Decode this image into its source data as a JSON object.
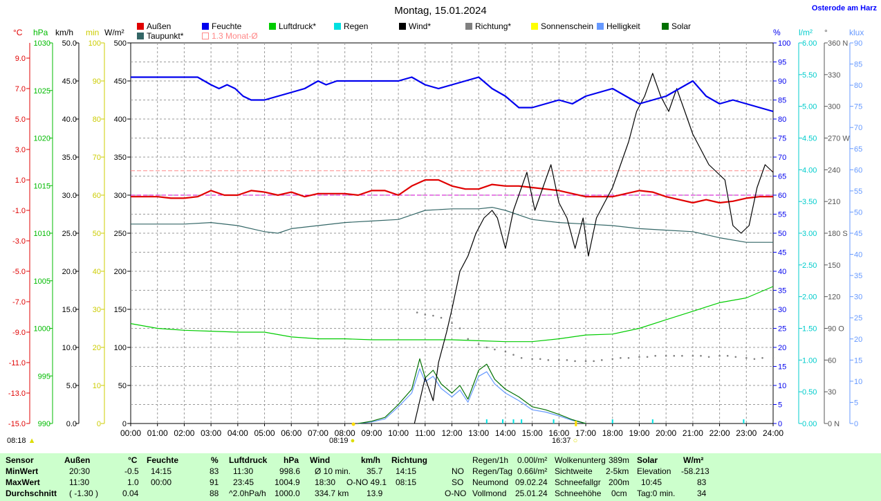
{
  "title": "Montag, 15.01.2024",
  "location": "Osterode am Harz",
  "legend": [
    {
      "label": "Außen",
      "color": "#e00000",
      "outline": false
    },
    {
      "label": "Feuchte",
      "color": "#0000ee",
      "outline": false
    },
    {
      "label": "Luftdruck*",
      "color": "#00cc00",
      "outline": false
    },
    {
      "label": "Regen",
      "color": "#00e0e0",
      "outline": false
    },
    {
      "label": "Wind*",
      "color": "#000000",
      "outline": false
    },
    {
      "label": "Richtung*",
      "color": "#808080",
      "outline": false
    },
    {
      "label": "Sonnenschein",
      "color": "#ffff00",
      "outline": false
    },
    {
      "label": "Helligkeit",
      "color": "#6699ff",
      "outline": false
    },
    {
      "label": "Solar",
      "color": "#007000",
      "outline": false
    },
    {
      "label": "Taupunkt*",
      "color": "#336666",
      "outline": false
    },
    {
      "label": "1.3 Monat-Ø",
      "color": "#ff8888",
      "outline": true
    }
  ],
  "units": {
    "temp": "°C",
    "press": "hPa",
    "wind": "km/h",
    "sun": "min",
    "solar": "W/m²",
    "hum": "%",
    "rain": "l/m²",
    "dir": "°",
    "lux": "klux"
  },
  "axes": {
    "temp": {
      "color": "#e00000",
      "ticks": [
        "9.0",
        "7.0",
        "5.0",
        "3.0",
        "1.0",
        "-1.0",
        "-3.0",
        "-5.0",
        "-7.0",
        "-9.0",
        "-11.0",
        "-13.0",
        "-15.0"
      ]
    },
    "press": {
      "color": "#00bb00",
      "ticks": [
        "1030",
        "1025",
        "1020",
        "1015",
        "1010",
        "1005",
        "1000",
        "995",
        "990"
      ]
    },
    "wind": {
      "color": "#000000",
      "ticks": [
        "50.0",
        "45.0",
        "40.0",
        "35.0",
        "30.0",
        "25.0",
        "20.0",
        "15.0",
        "10.0",
        "5.0",
        "0.0"
      ]
    },
    "sun": {
      "color": "#cccc00",
      "ticks": [
        "100",
        "90",
        "80",
        "70",
        "60",
        "50",
        "40",
        "30",
        "20",
        "10",
        "0"
      ]
    },
    "solar": {
      "color": "#000000",
      "ticks": [
        "500",
        "450",
        "400",
        "350",
        "300",
        "250",
        "200",
        "150",
        "100",
        "50",
        "0"
      ]
    },
    "hum": {
      "color": "#0000ee",
      "ticks": [
        "100",
        "95",
        "90",
        "85",
        "80",
        "75",
        "70",
        "65",
        "60",
        "55",
        "50",
        "45",
        "40",
        "35",
        "30",
        "25",
        "20",
        "15",
        "10",
        "5",
        "0"
      ]
    },
    "rain": {
      "color": "#00cccc",
      "ticks": [
        "6.00",
        "5.50",
        "5.00",
        "4.50",
        "4.00",
        "3.50",
        "3.00",
        "2.50",
        "2.00",
        "1.50",
        "1.00",
        "0.50",
        "0.00"
      ]
    },
    "dir": {
      "color": "#555555",
      "ticks": [
        "360 N",
        "330",
        "300",
        "270 W",
        "240",
        "210",
        "180 S",
        "150",
        "120",
        "90 O",
        "60",
        "30",
        "0 N"
      ]
    },
    "lux": {
      "color": "#6699ff",
      "ticks": [
        "90",
        "85",
        "80",
        "75",
        "70",
        "65",
        "60",
        "55",
        "50",
        "45",
        "40",
        "35",
        "30",
        "25",
        "20",
        "15",
        "10",
        "5",
        "0"
      ]
    }
  },
  "x_ticks": [
    "00:00",
    "01:00",
    "02:00",
    "03:00",
    "04:00",
    "05:00",
    "06:00",
    "07:00",
    "08:00",
    "09:00",
    "10:00",
    "11:00",
    "12:00",
    "13:00",
    "14:00",
    "15:00",
    "16:00",
    "17:00",
    "18:00",
    "19:00",
    "20:00",
    "21:00",
    "22:00",
    "23:00",
    "24:00"
  ],
  "sun_marks": {
    "left": "08:18",
    "sunrise": "08:19",
    "sunset": "16:37"
  },
  "chart_data": {
    "type": "line",
    "x_unit": "hours",
    "xlim": [
      0,
      24
    ],
    "grid": true,
    "series": [
      {
        "name": "Feuchte",
        "axis": "hum",
        "color": "#0000ee",
        "x": [
          0,
          2.5,
          3,
          3.3,
          3.6,
          3.9,
          4.2,
          4.5,
          5,
          5.5,
          6,
          6.5,
          7,
          7.3,
          7.7,
          8,
          9,
          10,
          10.5,
          11,
          11.5,
          12,
          12.5,
          13,
          13.5,
          14,
          14.5,
          15,
          15.5,
          16,
          16.5,
          17,
          17.5,
          18,
          18.5,
          19,
          19.5,
          20,
          20.5,
          21,
          21.5,
          22,
          22.5,
          23,
          23.5,
          24
        ],
        "y": [
          91,
          91,
          89,
          88,
          89,
          88,
          86,
          85,
          85,
          86,
          87,
          88,
          90,
          89,
          90,
          90,
          90,
          90,
          91,
          89,
          88,
          89,
          90,
          91,
          88,
          86,
          83,
          83,
          84,
          85,
          84,
          86,
          87,
          88,
          86,
          84,
          85,
          86,
          88,
          90,
          86,
          84,
          85,
          84,
          83,
          82
        ]
      },
      {
        "name": "Außen",
        "axis": "temp",
        "color": "#e00000",
        "x": [
          0,
          1,
          1.5,
          2,
          2.5,
          3,
          3.5,
          4,
          4.5,
          5,
          5.5,
          6,
          6.5,
          7,
          7.5,
          8,
          8.5,
          9,
          9.5,
          10,
          10.5,
          11,
          11.5,
          12,
          12.5,
          13,
          13.5,
          14,
          14.5,
          15,
          15.5,
          16,
          16.5,
          17,
          17.5,
          18,
          18.5,
          19,
          19.5,
          20,
          20.5,
          21,
          21.5,
          22,
          22.5,
          23,
          23.5,
          24
        ],
        "y": [
          -0.1,
          -0.1,
          -0.2,
          -0.2,
          -0.1,
          0.3,
          0.0,
          0.0,
          0.3,
          0.2,
          0.0,
          0.2,
          -0.1,
          0.1,
          0.1,
          0.1,
          0.0,
          0.3,
          0.3,
          0.0,
          0.6,
          1.0,
          1.0,
          0.6,
          0.4,
          0.4,
          0.7,
          0.6,
          0.6,
          0.5,
          0.4,
          0.3,
          0.1,
          -0.1,
          -0.1,
          -0.1,
          0.1,
          0.3,
          0.2,
          -0.1,
          -0.3,
          -0.5,
          -0.3,
          -0.5,
          -0.4,
          -0.2,
          -0.1,
          -0.1
        ]
      },
      {
        "name": "Taupunkt*",
        "axis": "temp",
        "color": "#336666",
        "x": [
          0,
          2,
          3,
          4,
          5,
          5.5,
          6,
          7,
          8,
          9,
          10,
          10.5,
          11,
          12,
          13,
          13.5,
          14,
          15,
          16,
          17,
          18,
          19,
          20,
          21,
          22,
          23,
          24
        ],
        "y": [
          -1.9,
          -1.9,
          -1.8,
          -2.0,
          -2.4,
          -2.5,
          -2.2,
          -2.0,
          -1.8,
          -1.7,
          -1.6,
          -1.3,
          -1.0,
          -0.9,
          -0.9,
          -0.8,
          -1.0,
          -1.6,
          -1.8,
          -1.9,
          -2.0,
          -2.2,
          -2.3,
          -2.4,
          -2.8,
          -3.1,
          -3.1
        ]
      },
      {
        "name": "Luftdruck*",
        "axis": "press",
        "color": "#00cc00",
        "x": [
          0,
          1,
          2,
          3,
          4,
          5,
          6,
          7,
          8,
          9,
          10,
          11,
          12,
          13,
          14,
          15,
          16,
          17,
          18,
          19,
          20,
          21,
          22,
          23,
          24
        ],
        "y": [
          1000.5,
          1000.0,
          999.8,
          999.7,
          999.6,
          999.6,
          999.1,
          998.9,
          998.9,
          998.8,
          998.8,
          998.8,
          998.8,
          998.7,
          998.6,
          998.6,
          998.9,
          999.3,
          999.4,
          1000.0,
          1000.9,
          1001.8,
          1002.7,
          1003.2,
          1004.4
        ]
      },
      {
        "name": "Wind*",
        "axis": "wind",
        "color": "#000000",
        "x": [
          10.6,
          11,
          11.3,
          11.5,
          11.8,
          12,
          12.3,
          12.6,
          12.9,
          13.2,
          13.5,
          13.7,
          14,
          14.3,
          14.6,
          14.8,
          15.1,
          15.4,
          15.7,
          16,
          16.3,
          16.6,
          16.9,
          17.1,
          17.4,
          17.7,
          18,
          18.3,
          18.6,
          18.9,
          19.2,
          19.5,
          19.8,
          20.1,
          20.4,
          20.7,
          21,
          21.3,
          21.6,
          21.9,
          22.2,
          22.5,
          22.8,
          23.1,
          23.4,
          23.7,
          24
        ],
        "y": [
          0,
          6,
          3,
          8,
          12,
          15,
          20,
          22,
          25,
          27,
          28,
          27,
          23,
          28,
          31,
          33,
          28,
          31,
          34,
          29,
          27,
          23,
          27,
          22,
          27,
          29,
          31,
          34,
          37,
          41,
          43,
          46,
          43,
          41,
          44,
          41,
          38,
          36,
          34,
          33,
          32,
          26,
          25,
          26,
          31,
          34,
          33
        ]
      },
      {
        "name": "Solar",
        "axis": "solar",
        "color": "#007000",
        "x": [
          8.5,
          9,
          9.5,
          10,
          10.5,
          10.8,
          11,
          11.3,
          11.6,
          12,
          12.3,
          12.6,
          13,
          13.3,
          13.6,
          14,
          14.5,
          15,
          15.5,
          16,
          16.5,
          17
        ],
        "y": [
          0,
          3,
          8,
          25,
          45,
          85,
          60,
          70,
          52,
          40,
          50,
          32,
          70,
          78,
          58,
          45,
          35,
          22,
          18,
          12,
          5,
          0
        ]
      },
      {
        "name": "Helligkeit",
        "axis": "solar",
        "color": "#6699ff",
        "x": [
          8.5,
          9,
          9.5,
          10,
          10.5,
          10.8,
          11,
          11.3,
          11.6,
          12,
          12.3,
          12.6,
          13,
          13.3,
          13.6,
          14,
          14.5,
          15,
          15.5,
          16,
          16.5,
          17
        ],
        "y": [
          0,
          2,
          6,
          22,
          40,
          72,
          55,
          62,
          46,
          35,
          44,
          28,
          62,
          68,
          52,
          40,
          30,
          18,
          15,
          10,
          4,
          0
        ]
      },
      {
        "name": "Richtung*",
        "axis": "dir",
        "color": "#808080",
        "dots": true,
        "x": [
          10.7,
          11,
          11.3,
          11.6,
          12,
          12.3,
          12.6,
          13,
          13.3,
          13.6,
          14,
          14.3,
          14.6,
          15,
          15.3,
          15.6,
          16,
          16.3,
          16.6,
          17,
          17.3,
          17.6,
          18,
          18.3,
          18.6,
          19,
          19.3,
          19.6,
          20,
          20.3,
          20.6,
          21,
          21.3,
          21.6,
          22,
          22.3,
          22.6,
          23,
          23.3,
          23.6,
          24
        ],
        "y": [
          105,
          103,
          102,
          100,
          95,
          90,
          80,
          75,
          72,
          70,
          68,
          65,
          62,
          61,
          61,
          60,
          60,
          60,
          59,
          59,
          59,
          60,
          61,
          62,
          62,
          63,
          63,
          64,
          64,
          64,
          64,
          64,
          64,
          63,
          64,
          64,
          63,
          62,
          61,
          62,
          62
        ]
      }
    ],
    "reference_lines": [
      {
        "name": "1.3 Monat-Ø",
        "axis": "temp",
        "value": 1.6,
        "color": "#ff8888",
        "dash": true
      },
      {
        "axis": "temp",
        "value": 0.0,
        "color": "#cc00cc",
        "dash": true
      }
    ],
    "rain_ticks": [
      13.3,
      13.9,
      14.3,
      14.6,
      15.8,
      18.0,
      19.5,
      22.9
    ]
  },
  "table": {
    "rows": [
      "Sensor",
      "MinWert",
      "MaxWert",
      "Durchschnitt"
    ],
    "aussen": {
      "head": "Außen",
      "unit": "°C",
      "r1": [
        "20:30",
        "-0.5"
      ],
      "r2": [
        "11:30",
        "1.0"
      ],
      "r3": [
        "( -1.30 )",
        "0.04"
      ]
    },
    "feuchte": {
      "head": "Feuchte",
      "unit": "%",
      "r1": [
        "14:15",
        "83"
      ],
      "r2": [
        "00:00",
        "91"
      ],
      "r3": [
        "",
        "88"
      ]
    },
    "luftdruck": {
      "head": "Luftdruck",
      "unit": "hPa",
      "r1": [
        "11:30",
        "998.6"
      ],
      "r2": [
        "23:45",
        "1004.9"
      ],
      "r3": [
        "^2.0hPa/h",
        "1000.0"
      ]
    },
    "wind": {
      "head": "Wind",
      "unit": "km/h",
      "r1": [
        "Ø 10 min.",
        "35.7"
      ],
      "r2": [
        "18:30",
        "O-NO 49.1"
      ],
      "r3": [
        "334.7 km",
        "13.9"
      ]
    },
    "richtung": {
      "head": "Richtung",
      "r1": [
        "14:15",
        "NO"
      ],
      "r2": [
        "08:15",
        "SO"
      ],
      "r3": [
        "",
        "O-NO"
      ]
    },
    "regen": [
      [
        "Regen/1h",
        "0.00l/m²"
      ],
      [
        "Regen/Tag",
        "0.66l/m²"
      ],
      [
        "Neumond",
        "09.02.24"
      ],
      [
        "Vollmond",
        "25.01.24"
      ]
    ],
    "wolken": [
      [
        "Wolkenunterg",
        "389m"
      ],
      [
        "Sichtweite",
        "2-5km"
      ],
      [
        "Schneefallgr",
        "200m"
      ],
      [
        "Schneehöhe",
        "0cm"
      ]
    ],
    "solar": {
      "head": "Solar",
      "unit": "W/m²",
      "r1": [
        "Elevation",
        "-58.213"
      ],
      "r2": [
        "10:45",
        "83"
      ],
      "r3": [
        "Tag:0 min.",
        "34"
      ]
    }
  }
}
